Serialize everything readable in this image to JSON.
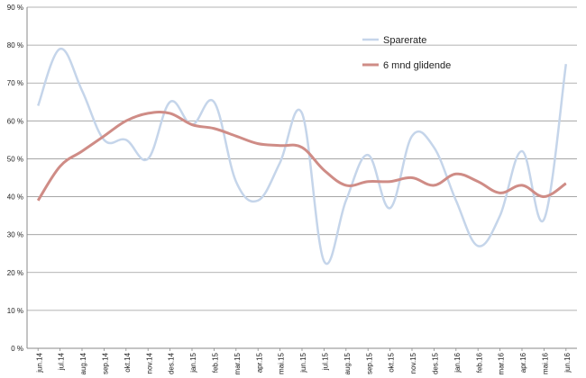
{
  "chart_data": {
    "type": "line",
    "title": "",
    "xlabel": "",
    "ylabel": "",
    "ylim": [
      0,
      90
    ],
    "y_ticks": [
      "0 %",
      "10 %",
      "20 %",
      "30 %",
      "40 %",
      "50 %",
      "60 %",
      "70 %",
      "80 %",
      "90 %"
    ],
    "grid": true,
    "legend_position": "top-right",
    "categories": [
      "jun.14",
      "jul.14",
      "aug.14",
      "sep.14",
      "okt.14",
      "nov.14",
      "des.14",
      "jan.15",
      "feb.15",
      "mar.15",
      "apr.15",
      "mai.15",
      "jun.15",
      "jul.15",
      "aug.15",
      "sep.15",
      "okt.15",
      "nov.15",
      "des.15",
      "jan.16",
      "feb.16",
      "mar.16",
      "apr.16",
      "mai.16",
      "jun.16"
    ],
    "series": [
      {
        "name": "Sparerate",
        "color": "#c5d5ea",
        "values": [
          64,
          79,
          68,
          55,
          55,
          50,
          65,
          59,
          65,
          44,
          39,
          49,
          62,
          23,
          39,
          51,
          37,
          56,
          53,
          39,
          27,
          35,
          52,
          34,
          75
        ]
      },
      {
        "name": "6 mnd glidende",
        "color": "#cf8c86",
        "values": [
          39,
          48,
          52,
          56,
          60,
          62,
          62,
          59,
          58,
          56,
          54,
          53.5,
          53,
          47,
          43,
          44,
          44,
          45,
          43,
          46,
          44,
          41,
          43,
          40,
          43.5
        ]
      }
    ]
  }
}
